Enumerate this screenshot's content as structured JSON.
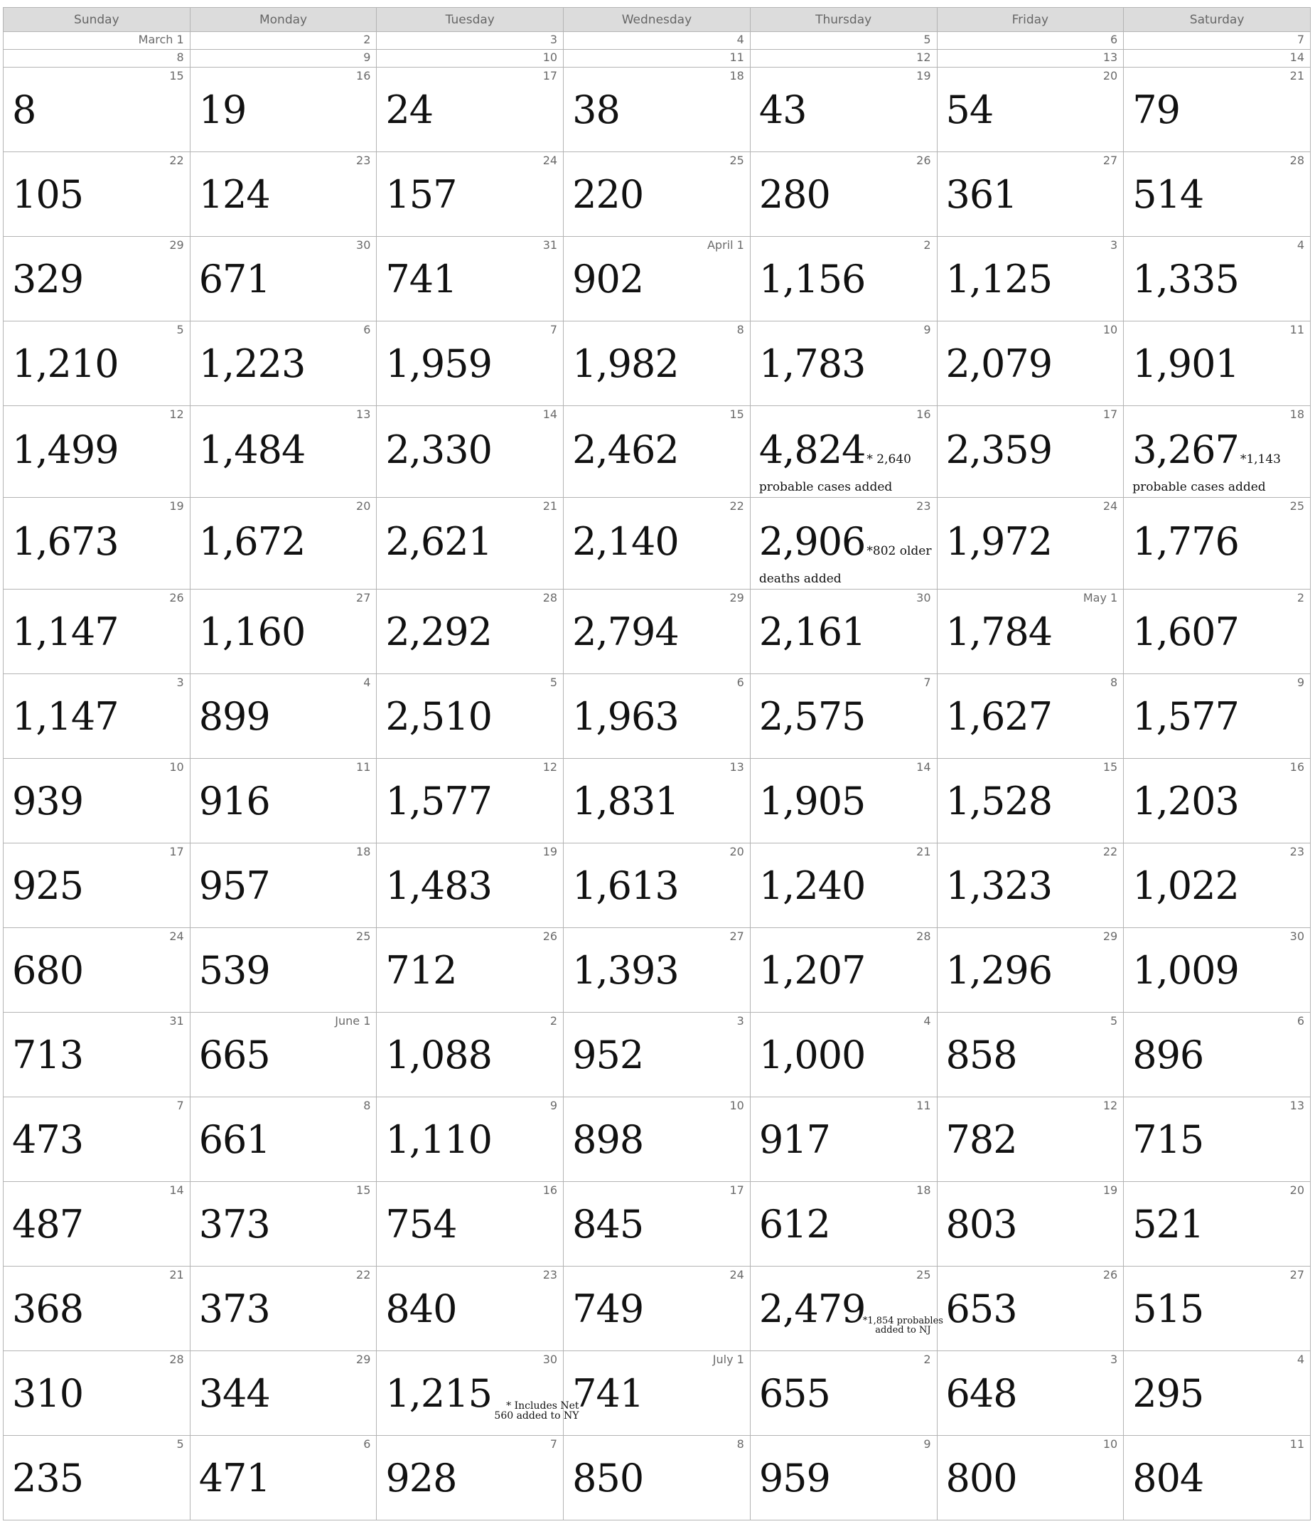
{
  "weekdays": [
    "Sunday",
    "Monday",
    "Tuesday",
    "Wednesday",
    "Thursday",
    "Friday",
    "Saturday"
  ],
  "thin_rows": [
    [
      "March 1",
      "2",
      "3",
      "4",
      "5",
      "6",
      "7"
    ],
    [
      "8",
      "9",
      "10",
      "11",
      "12",
      "13",
      "14"
    ]
  ],
  "weeks": [
    [
      {
        "d": "15",
        "v": "8"
      },
      {
        "d": "16",
        "v": "19"
      },
      {
        "d": "17",
        "v": "24"
      },
      {
        "d": "18",
        "v": "38"
      },
      {
        "d": "19",
        "v": "43"
      },
      {
        "d": "20",
        "v": "54"
      },
      {
        "d": "21",
        "v": "79"
      }
    ],
    [
      {
        "d": "22",
        "v": "105"
      },
      {
        "d": "23",
        "v": "124"
      },
      {
        "d": "24",
        "v": "157"
      },
      {
        "d": "25",
        "v": "220"
      },
      {
        "d": "26",
        "v": "280"
      },
      {
        "d": "27",
        "v": "361"
      },
      {
        "d": "28",
        "v": "514"
      }
    ],
    [
      {
        "d": "29",
        "v": "329"
      },
      {
        "d": "30",
        "v": "671"
      },
      {
        "d": "31",
        "v": "741"
      },
      {
        "d": "April 1",
        "v": "902"
      },
      {
        "d": "2",
        "v": "1,156"
      },
      {
        "d": "3",
        "v": "1,125"
      },
      {
        "d": "4",
        "v": "1,335"
      }
    ],
    [
      {
        "d": "5",
        "v": "1,210"
      },
      {
        "d": "6",
        "v": "1,223"
      },
      {
        "d": "7",
        "v": "1,959"
      },
      {
        "d": "8",
        "v": "1,982"
      },
      {
        "d": "9",
        "v": "1,783"
      },
      {
        "d": "10",
        "v": "2,079"
      },
      {
        "d": "11",
        "v": "1,901"
      }
    ],
    [
      {
        "d": "12",
        "v": "1,499"
      },
      {
        "d": "13",
        "v": "1,484"
      },
      {
        "d": "14",
        "v": "2,330"
      },
      {
        "d": "15",
        "v": "2,462"
      },
      {
        "d": "16",
        "v": "4,824",
        "n1": "* 2,640",
        "n2": "probable cases added"
      },
      {
        "d": "17",
        "v": "2,359"
      },
      {
        "d": "18",
        "v": "3,267",
        "n1": "*1,143",
        "n2": "probable cases added"
      }
    ],
    [
      {
        "d": "19",
        "v": "1,673"
      },
      {
        "d": "20",
        "v": "1,672"
      },
      {
        "d": "21",
        "v": "2,621"
      },
      {
        "d": "22",
        "v": "2,140"
      },
      {
        "d": "23",
        "v": "2,906",
        "n1": "*802 older",
        "n2": "deaths added"
      },
      {
        "d": "24",
        "v": "1,972"
      },
      {
        "d": "25",
        "v": "1,776"
      }
    ],
    [
      {
        "d": "26",
        "v": "1,147"
      },
      {
        "d": "27",
        "v": "1,160"
      },
      {
        "d": "28",
        "v": "2,292"
      },
      {
        "d": "29",
        "v": "2,794"
      },
      {
        "d": "30",
        "v": "2,161"
      },
      {
        "d": "May 1",
        "v": "1,784"
      },
      {
        "d": "2",
        "v": "1,607"
      }
    ],
    [
      {
        "d": "3",
        "v": "1,147"
      },
      {
        "d": "4",
        "v": "899"
      },
      {
        "d": "5",
        "v": "2,510"
      },
      {
        "d": "6",
        "v": "1,963"
      },
      {
        "d": "7",
        "v": "2,575"
      },
      {
        "d": "8",
        "v": "1,627"
      },
      {
        "d": "9",
        "v": "1,577"
      }
    ],
    [
      {
        "d": "10",
        "v": "939"
      },
      {
        "d": "11",
        "v": "916"
      },
      {
        "d": "12",
        "v": "1,577"
      },
      {
        "d": "13",
        "v": "1,831"
      },
      {
        "d": "14",
        "v": "1,905"
      },
      {
        "d": "15",
        "v": "1,528"
      },
      {
        "d": "16",
        "v": "1,203"
      }
    ],
    [
      {
        "d": "17",
        "v": "925"
      },
      {
        "d": "18",
        "v": "957"
      },
      {
        "d": "19",
        "v": "1,483"
      },
      {
        "d": "20",
        "v": "1,613"
      },
      {
        "d": "21",
        "v": "1,240"
      },
      {
        "d": "22",
        "v": "1,323"
      },
      {
        "d": "23",
        "v": "1,022"
      }
    ],
    [
      {
        "d": "24",
        "v": "680"
      },
      {
        "d": "25",
        "v": "539"
      },
      {
        "d": "26",
        "v": "712"
      },
      {
        "d": "27",
        "v": "1,393"
      },
      {
        "d": "28",
        "v": "1,207"
      },
      {
        "d": "29",
        "v": "1,296"
      },
      {
        "d": "30",
        "v": "1,009"
      }
    ],
    [
      {
        "d": "31",
        "v": "713"
      },
      {
        "d": "June 1",
        "v": "665"
      },
      {
        "d": "2",
        "v": "1,088"
      },
      {
        "d": "3",
        "v": "952"
      },
      {
        "d": "4",
        "v": "1,000"
      },
      {
        "d": "5",
        "v": "858"
      },
      {
        "d": "6",
        "v": "896"
      }
    ],
    [
      {
        "d": "7",
        "v": "473"
      },
      {
        "d": "8",
        "v": "661"
      },
      {
        "d": "9",
        "v": "1,110"
      },
      {
        "d": "10",
        "v": "898"
      },
      {
        "d": "11",
        "v": "917"
      },
      {
        "d": "12",
        "v": "782"
      },
      {
        "d": "13",
        "v": "715"
      }
    ],
    [
      {
        "d": "14",
        "v": "487"
      },
      {
        "d": "15",
        "v": "373"
      },
      {
        "d": "16",
        "v": "754"
      },
      {
        "d": "17",
        "v": "845"
      },
      {
        "d": "18",
        "v": "612"
      },
      {
        "d": "19",
        "v": "803"
      },
      {
        "d": "20",
        "v": "521"
      }
    ],
    [
      {
        "d": "21",
        "v": "368"
      },
      {
        "d": "22",
        "v": "373"
      },
      {
        "d": "23",
        "v": "840"
      },
      {
        "d": "24",
        "v": "749"
      },
      {
        "d": "25",
        "v": "2,479",
        "s1": "*1,854 probables",
        "s2": "added to NJ"
      },
      {
        "d": "26",
        "v": "653"
      },
      {
        "d": "27",
        "v": "515"
      }
    ],
    [
      {
        "d": "28",
        "v": "310"
      },
      {
        "d": "29",
        "v": "344"
      },
      {
        "d": "30",
        "v": "1,215",
        "t1": "* Includes Net",
        "t2": "560 added to NY"
      },
      {
        "d": "July 1",
        "v": "741"
      },
      {
        "d": "2",
        "v": "655"
      },
      {
        "d": "3",
        "v": "648"
      },
      {
        "d": "4",
        "v": "295"
      }
    ],
    [
      {
        "d": "5",
        "v": "235"
      },
      {
        "d": "6",
        "v": "471"
      },
      {
        "d": "7",
        "v": "928"
      },
      {
        "d": "8",
        "v": "850"
      },
      {
        "d": "9",
        "v": "959"
      },
      {
        "d": "10",
        "v": "800"
      },
      {
        "d": "11",
        "v": "804"
      }
    ]
  ]
}
